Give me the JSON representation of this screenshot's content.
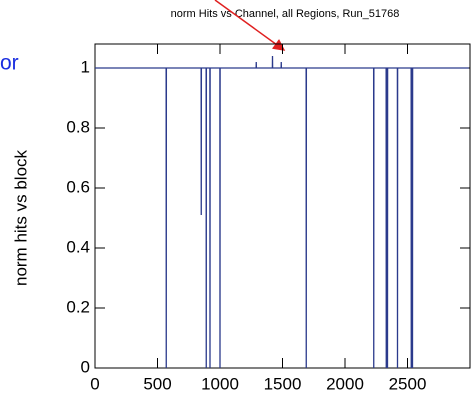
{
  "chart_data": {
    "type": "line",
    "title": "norm Hits vs Channel, all Regions, Run_51768",
    "y_label": "norm hits vs block",
    "side_text": "or",
    "x": [
      0,
      569,
      570,
      571,
      849,
      850,
      851,
      889,
      890,
      891,
      919,
      920,
      921,
      999,
      1000,
      1001,
      1289,
      1290,
      1291,
      1419,
      1420,
      1421,
      1489,
      1490,
      1491,
      1689,
      1690,
      1691,
      2229,
      2230,
      2231,
      2329,
      2330,
      2331,
      2339,
      2340,
      2341,
      2419,
      2420,
      2421,
      2529,
      2530,
      2531,
      2539,
      2540,
      2541,
      2990
    ],
    "series": [
      {
        "color": "#2b3a8c",
        "values": [
          1,
          1,
          0,
          1,
          1,
          0.51,
          1,
          1,
          0,
          1,
          1,
          0,
          1,
          1,
          0,
          1,
          1,
          1.02,
          1,
          1,
          1.04,
          1,
          1,
          1.02,
          1,
          1,
          0,
          1,
          1,
          0,
          1,
          1,
          0,
          1,
          1,
          0,
          1,
          1,
          0,
          1,
          1,
          0,
          1,
          1,
          0,
          1,
          1
        ]
      }
    ],
    "xlim": [
      0,
      3000
    ],
    "ylim": [
      0,
      1.08
    ],
    "xticks": [
      0,
      500,
      1000,
      1500,
      2000,
      2500
    ],
    "yticks": [
      0,
      0.2,
      0.4,
      0.6,
      0.8,
      1
    ]
  }
}
